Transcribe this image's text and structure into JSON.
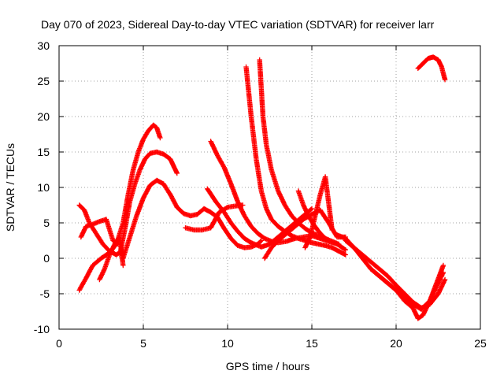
{
  "chart_data": {
    "type": "scatter",
    "title": "Day 070 of 2023, Sidereal Day-to-day VTEC variation (SDTVAR) for receiver larr",
    "xlabel": "GPS time / hours",
    "ylabel": "SDTVAR / TECUs",
    "xlim": [
      0,
      25
    ],
    "ylim": [
      -10,
      30
    ],
    "xticks": [
      0,
      5,
      10,
      15,
      20,
      25
    ],
    "yticks": [
      -10,
      -5,
      0,
      5,
      10,
      15,
      20,
      25,
      30
    ],
    "grid": true,
    "marker": "+",
    "color": "#ff0000",
    "series": [
      {
        "x": [
          1.2,
          1.6,
          2.0,
          2.5,
          3.0,
          3.4,
          3.8,
          4.1,
          4.4,
          4.7,
          5.0,
          5.3,
          5.6,
          5.8,
          6.0
        ],
        "y": [
          -4.5,
          -2.8,
          -1.0,
          0.0,
          0.8,
          2.0,
          5.0,
          9.0,
          12.5,
          15.0,
          16.8,
          18.0,
          18.8,
          18.4,
          17.0
        ]
      },
      {
        "x": [
          3.6,
          3.9,
          4.2,
          4.5,
          4.8,
          5.1,
          5.4,
          5.8,
          6.2,
          6.6,
          6.8,
          7.0
        ],
        "y": [
          0.5,
          4.0,
          8.0,
          10.5,
          12.5,
          14.0,
          14.8,
          15.0,
          14.7,
          14.0,
          13.0,
          12.0
        ]
      },
      {
        "x": [
          3.8,
          4.2,
          4.6,
          5.0,
          5.4,
          5.8,
          6.2,
          6.6,
          7.0,
          7.4,
          7.8,
          8.2,
          8.6,
          9.0,
          9.4,
          9.8,
          10.2,
          10.6,
          11.0,
          11.4,
          11.8,
          12.0
        ],
        "y": [
          0.0,
          3.0,
          6.0,
          8.5,
          10.3,
          11.0,
          10.5,
          9.0,
          7.2,
          6.3,
          6.0,
          6.2,
          7.0,
          6.5,
          5.8,
          4.2,
          2.8,
          1.8,
          1.5,
          1.6,
          2.0,
          2.5
        ]
      },
      {
        "x": [
          1.2,
          1.5,
          1.8,
          2.2,
          2.6,
          3.0,
          3.4,
          3.7
        ],
        "y": [
          7.5,
          6.8,
          5.0,
          3.5,
          2.0,
          1.0,
          0.5,
          1.0
        ]
      },
      {
        "x": [
          1.3,
          1.6,
          2.0,
          2.4,
          2.8,
          3.0,
          3.2,
          3.5
        ],
        "y": [
          3.0,
          4.5,
          4.8,
          5.2,
          5.5,
          4.0,
          2.5,
          2.0
        ]
      },
      {
        "x": [
          2.4,
          2.7,
          3.0,
          3.3,
          3.6,
          3.8
        ],
        "y": [
          -3.0,
          -1.5,
          0.5,
          2.0,
          3.0,
          -1.0
        ]
      },
      {
        "x": [
          7.5,
          8.0,
          8.5,
          9.0,
          9.5,
          10.0,
          10.5,
          10.9
        ],
        "y": [
          4.3,
          4.0,
          4.0,
          4.3,
          6.5,
          7.2,
          7.4,
          7.5
        ]
      },
      {
        "x": [
          8.8,
          9.3,
          9.8,
          10.2,
          10.6,
          11.0,
          11.4,
          11.8,
          12.0,
          12.5,
          13.0,
          13.5,
          14.0,
          14.5,
          15.0
        ],
        "y": [
          9.8,
          8.0,
          6.5,
          5.0,
          3.8,
          2.8,
          2.2,
          1.8,
          1.6,
          2.0,
          3.0,
          4.0,
          5.0,
          6.0,
          7.0
        ]
      },
      {
        "x": [
          9.0,
          9.4,
          9.8,
          10.2,
          10.6,
          11.0,
          11.4,
          11.8,
          12.2,
          12.6,
          13.0,
          13.5,
          14.0,
          14.5,
          15.0,
          15.5,
          16.0,
          16.5,
          17.0
        ],
        "y": [
          16.5,
          14.5,
          12.8,
          10.5,
          8.0,
          6.0,
          4.5,
          3.5,
          2.8,
          2.4,
          2.2,
          2.4,
          2.8,
          3.0,
          3.2,
          2.8,
          2.4,
          2.0,
          1.2
        ]
      },
      {
        "x": [
          11.1,
          11.4,
          11.7,
          12.0,
          12.3,
          12.6,
          13.0,
          13.4,
          13.8,
          14.2,
          14.6,
          15.0,
          15.4,
          15.8,
          16.2,
          16.6,
          17.0
        ],
        "y": [
          27.0,
          20.0,
          14.0,
          9.5,
          7.0,
          5.5,
          4.5,
          3.8,
          3.2,
          2.8,
          2.5,
          2.2,
          2.0,
          1.8,
          1.5,
          1.0,
          0.5
        ]
      },
      {
        "x": [
          11.9,
          12.0,
          12.1,
          12.3,
          12.6,
          13.0,
          13.4,
          13.8,
          14.2,
          14.6,
          15.0,
          15.4,
          15.8,
          16.2,
          16.6
        ],
        "y": [
          28.0,
          24.0,
          20.0,
          16.0,
          12.5,
          9.5,
          7.5,
          6.0,
          5.0,
          4.2,
          3.6,
          3.2,
          2.8,
          2.4,
          2.0
        ]
      },
      {
        "x": [
          12.2,
          12.6,
          13.0,
          13.5,
          14.0,
          14.5,
          15.0,
          15.5,
          16.0,
          16.5,
          17.0
        ],
        "y": [
          0.0,
          1.5,
          2.5,
          3.5,
          4.5,
          5.5,
          6.2,
          6.8,
          5.0,
          3.0,
          3.0
        ]
      },
      {
        "x": [
          14.2,
          14.5,
          14.8,
          15.1,
          15.4,
          15.7,
          16.0
        ],
        "y": [
          9.5,
          7.5,
          6.0,
          4.8,
          3.8,
          3.0,
          2.5
        ]
      },
      {
        "x": [
          14.6,
          14.9,
          15.2,
          15.5,
          15.8,
          16.2
        ],
        "y": [
          1.5,
          3.0,
          6.0,
          9.0,
          11.5,
          4.0
        ]
      },
      {
        "x": [
          16.5,
          17.0,
          17.5,
          18.0,
          18.5,
          19.0,
          19.5,
          20.0,
          20.5,
          21.0,
          21.5,
          22.0,
          22.4,
          22.8
        ],
        "y": [
          3.3,
          2.8,
          1.5,
          0.0,
          -1.5,
          -2.5,
          -3.5,
          -4.5,
          -5.5,
          -6.5,
          -7.2,
          -6.0,
          -4.0,
          -2.0
        ]
      },
      {
        "x": [
          17.0,
          17.5,
          18.0,
          18.5,
          19.0,
          19.5,
          20.0,
          20.5,
          21.0,
          21.5,
          22.0,
          22.5,
          22.9
        ],
        "y": [
          2.5,
          1.5,
          0.5,
          -0.5,
          -1.5,
          -2.5,
          -3.8,
          -5.0,
          -6.2,
          -7.0,
          -6.5,
          -5.0,
          -3.0
        ]
      },
      {
        "x": [
          18.5,
          19.0,
          19.5,
          20.0,
          20.5,
          21.0,
          21.3,
          21.6,
          22.0,
          22.4,
          22.8
        ],
        "y": [
          -1.5,
          -2.5,
          -3.5,
          -4.5,
          -6.0,
          -7.0,
          -8.5,
          -8.0,
          -6.0,
          -3.5,
          -1.0
        ]
      },
      {
        "x": [
          21.3,
          21.6,
          21.9,
          22.2,
          22.5,
          22.7,
          22.9
        ],
        "y": [
          26.8,
          27.5,
          28.2,
          28.4,
          28.0,
          27.0,
          25.2
        ]
      }
    ]
  }
}
